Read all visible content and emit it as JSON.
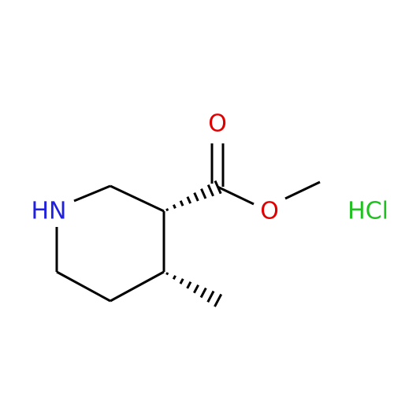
{
  "atoms": {
    "nitrogen": "HN",
    "carbonyl_oxygen": "O",
    "ester_oxygen": "O",
    "salt": "HCl"
  }
}
